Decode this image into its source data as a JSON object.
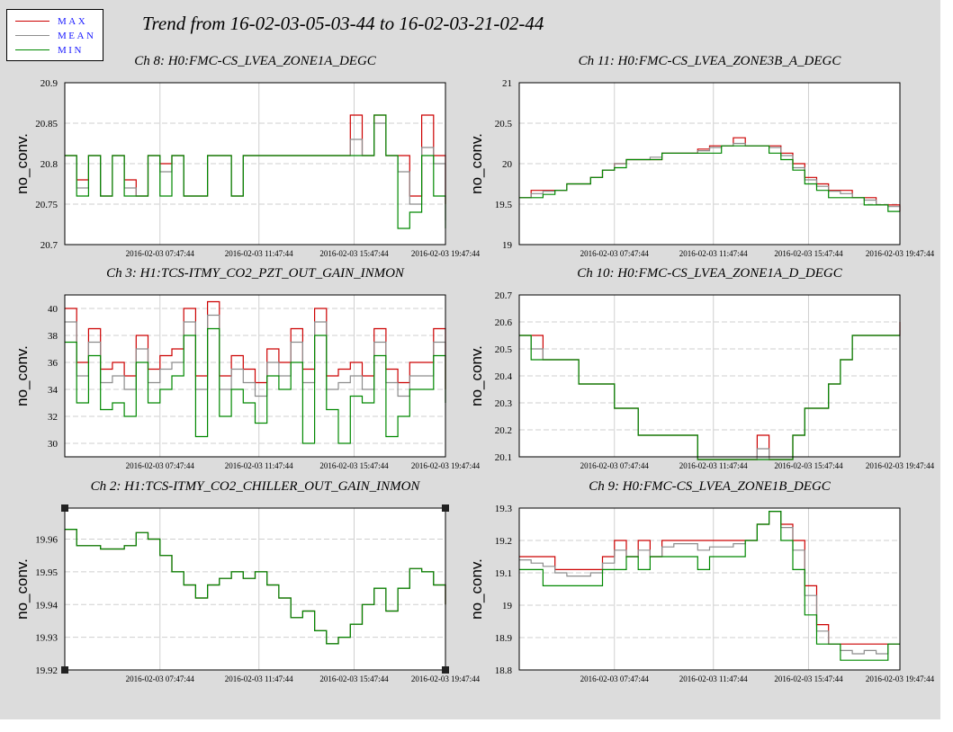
{
  "title": "Trend from 16-02-03-05-03-44 to 16-02-03-21-02-44",
  "legend": [
    {
      "label": "MAX",
      "color": "#cc0000"
    },
    {
      "label": "MEAN",
      "color": "#8c8c8c"
    },
    {
      "label": "MIN",
      "color": "#008800"
    }
  ],
  "chart_data": [
    {
      "type": "line",
      "title": "Ch 8: H0:FMC-CS_LVEA_ZONE1A_DEGC",
      "ylabel": "no_conv.",
      "ylim": [
        20.7,
        20.9
      ],
      "yticks": [
        "20.9",
        "20.85",
        "20.8",
        "20.75",
        "20.7"
      ],
      "xticks": [
        "2016-02-03 07:47:44",
        "2016-02-03 11:47:44",
        "2016-02-03 15:47:44",
        "2016-02-03 19:47:44"
      ],
      "x": [
        0,
        0.5,
        1,
        1.5,
        2,
        2.5,
        3,
        3.5,
        4,
        4.5,
        5,
        5.5,
        6,
        6.5,
        7,
        7.5,
        8,
        8.5,
        9,
        9.5,
        10,
        10.5,
        11,
        11.5,
        12,
        12.5,
        13,
        13.5,
        14,
        14.5,
        15,
        15.5,
        16
      ],
      "series": [
        {
          "name": "MAX",
          "values": [
            20.81,
            20.78,
            20.81,
            20.76,
            20.81,
            20.78,
            20.76,
            20.81,
            20.8,
            20.81,
            20.76,
            20.76,
            20.81,
            20.81,
            20.76,
            20.81,
            20.81,
            20.81,
            20.81,
            20.81,
            20.81,
            20.81,
            20.81,
            20.81,
            20.86,
            20.81,
            20.86,
            20.81,
            20.81,
            20.76,
            20.86,
            20.81,
            20.75
          ]
        },
        {
          "name": "MEAN",
          "values": [
            20.81,
            20.77,
            20.81,
            20.76,
            20.81,
            20.77,
            20.76,
            20.81,
            20.79,
            20.81,
            20.76,
            20.76,
            20.81,
            20.81,
            20.76,
            20.81,
            20.81,
            20.81,
            20.81,
            20.81,
            20.81,
            20.81,
            20.81,
            20.81,
            20.83,
            20.81,
            20.85,
            20.81,
            20.79,
            20.75,
            20.82,
            20.8,
            20.73
          ]
        },
        {
          "name": "MIN",
          "values": [
            20.81,
            20.76,
            20.81,
            20.76,
            20.81,
            20.76,
            20.76,
            20.81,
            20.76,
            20.81,
            20.76,
            20.76,
            20.81,
            20.81,
            20.76,
            20.81,
            20.81,
            20.81,
            20.81,
            20.81,
            20.81,
            20.81,
            20.81,
            20.81,
            20.81,
            20.81,
            20.86,
            20.81,
            20.72,
            20.74,
            20.81,
            20.76,
            20.72
          ]
        }
      ]
    },
    {
      "type": "line",
      "title": "Ch 11: H0:FMC-CS_LVEA_ZONE3B_A_DEGC",
      "ylabel": "no_conv.",
      "ylim": [
        19,
        21
      ],
      "yticks": [
        "21",
        "20.5",
        "20",
        "19.5",
        "19"
      ],
      "xticks": [
        "2016-02-03 07:47:44",
        "2016-02-03 11:47:44",
        "2016-02-03 15:47:44",
        "2016-02-03 19:47:44"
      ],
      "x": [
        0,
        0.5,
        1,
        1.5,
        2,
        2.5,
        3,
        3.5,
        4,
        4.5,
        5,
        5.5,
        6,
        6.5,
        7,
        7.5,
        8,
        8.5,
        9,
        9.5,
        10,
        10.5,
        11,
        11.5,
        12,
        12.5,
        13,
        13.5,
        14,
        14.5,
        15,
        15.5,
        16
      ],
      "series": [
        {
          "name": "MAX",
          "values": [
            19.58,
            19.67,
            19.67,
            19.67,
            19.75,
            19.75,
            19.83,
            19.92,
            20.0,
            20.05,
            20.05,
            20.05,
            20.13,
            20.13,
            20.13,
            20.18,
            20.22,
            20.22,
            20.32,
            20.22,
            20.22,
            20.22,
            20.13,
            20.0,
            19.83,
            19.75,
            19.67,
            19.67,
            19.58,
            19.58,
            19.49,
            19.49,
            19.41
          ]
        },
        {
          "name": "MEAN",
          "values": [
            19.58,
            19.63,
            19.66,
            19.67,
            19.75,
            19.75,
            19.83,
            19.92,
            20.0,
            20.05,
            20.05,
            20.08,
            20.13,
            20.13,
            20.13,
            20.16,
            20.2,
            20.22,
            20.25,
            20.22,
            20.22,
            20.2,
            20.1,
            19.95,
            19.8,
            19.72,
            19.66,
            19.63,
            19.58,
            19.55,
            19.49,
            19.47,
            19.41
          ]
        },
        {
          "name": "MIN",
          "values": [
            19.58,
            19.58,
            19.62,
            19.67,
            19.75,
            19.75,
            19.83,
            19.92,
            19.95,
            20.05,
            20.05,
            20.05,
            20.13,
            20.13,
            20.13,
            20.13,
            20.13,
            20.22,
            20.22,
            20.22,
            20.22,
            20.13,
            20.05,
            19.92,
            19.75,
            19.67,
            19.58,
            19.58,
            19.58,
            19.49,
            19.49,
            19.41,
            19.41
          ]
        }
      ]
    },
    {
      "type": "line",
      "title": "Ch 3: H1:TCS-ITMY_CO2_PZT_OUT_GAIN_INMON",
      "ylabel": "no_conv.",
      "ylim": [
        29,
        41
      ],
      "yticks": [
        "40",
        "38",
        "36",
        "34",
        "32",
        "30"
      ],
      "xticks": [
        "2016-02-03 07:47:44",
        "2016-02-03 11:47:44",
        "2016-02-03 15:47:44",
        "2016-02-03 19:47:44"
      ],
      "x": [
        0,
        0.5,
        1,
        1.5,
        2,
        2.5,
        3,
        3.5,
        4,
        4.5,
        5,
        5.5,
        6,
        6.5,
        7,
        7.5,
        8,
        8.5,
        9,
        9.5,
        10,
        10.5,
        11,
        11.5,
        12,
        12.5,
        13,
        13.5,
        14,
        14.5,
        15,
        15.5,
        16
      ],
      "series": [
        {
          "name": "MAX",
          "values": [
            40.0,
            36.0,
            38.5,
            35.5,
            36.0,
            35.0,
            38.0,
            35.5,
            36.5,
            37.0,
            40.0,
            35.0,
            40.5,
            35.0,
            36.5,
            35.5,
            34.5,
            37.0,
            36.0,
            38.5,
            35.5,
            40.0,
            35.0,
            35.5,
            36.0,
            35.0,
            38.5,
            35.5,
            34.5,
            36.0,
            36.0,
            38.5,
            34.0
          ]
        },
        {
          "name": "MEAN",
          "values": [
            39.0,
            35.0,
            37.5,
            34.5,
            35.0,
            34.0,
            37.0,
            34.5,
            35.5,
            36.0,
            39.0,
            34.0,
            39.5,
            34.0,
            35.5,
            34.5,
            33.5,
            36.0,
            35.0,
            37.5,
            34.5,
            39.0,
            34.0,
            34.5,
            35.0,
            34.0,
            37.5,
            34.5,
            33.5,
            35.0,
            35.0,
            37.5,
            33.0
          ]
        },
        {
          "name": "MIN",
          "values": [
            37.5,
            33.0,
            36.5,
            32.5,
            33.0,
            32.0,
            36.0,
            33.0,
            34.0,
            35.0,
            38.0,
            30.5,
            38.5,
            32.0,
            34.0,
            33.0,
            31.5,
            35.0,
            34.0,
            36.0,
            30.0,
            38.0,
            32.5,
            30.0,
            33.5,
            33.0,
            36.5,
            30.5,
            32.0,
            34.0,
            34.0,
            36.5,
            33.0
          ]
        }
      ]
    },
    {
      "type": "line",
      "title": "Ch 10: H0:FMC-CS_LVEA_ZONE1A_D_DEGC",
      "ylabel": "no_conv.",
      "ylim": [
        20.1,
        20.7
      ],
      "yticks": [
        "20.7",
        "20.6",
        "20.5",
        "20.4",
        "20.3",
        "20.2",
        "20.1"
      ],
      "xticks": [
        "2016-02-03 07:47:44",
        "2016-02-03 11:47:44",
        "2016-02-03 15:47:44",
        "2016-02-03 19:47:44"
      ],
      "x": [
        0,
        0.5,
        1,
        1.5,
        2,
        2.5,
        3,
        3.5,
        4,
        4.5,
        5,
        5.5,
        6,
        6.5,
        7,
        7.5,
        8,
        8.5,
        9,
        9.5,
        10,
        10.5,
        11,
        11.5,
        12,
        12.5,
        13,
        13.5,
        14,
        14.5,
        15,
        15.5,
        16
      ],
      "series": [
        {
          "name": "MAX",
          "values": [
            20.55,
            20.55,
            20.46,
            20.46,
            20.46,
            20.37,
            20.37,
            20.37,
            20.28,
            20.28,
            20.18,
            20.18,
            20.18,
            20.18,
            20.18,
            20.09,
            20.09,
            20.09,
            20.09,
            20.09,
            20.18,
            20.09,
            20.09,
            20.18,
            20.28,
            20.28,
            20.37,
            20.46,
            20.55,
            20.55,
            20.55,
            20.55,
            20.6
          ]
        },
        {
          "name": "MEAN",
          "values": [
            20.55,
            20.5,
            20.46,
            20.46,
            20.46,
            20.37,
            20.37,
            20.37,
            20.28,
            20.28,
            20.18,
            20.18,
            20.18,
            20.18,
            20.18,
            20.09,
            20.09,
            20.09,
            20.09,
            20.09,
            20.13,
            20.09,
            20.09,
            20.18,
            20.28,
            20.28,
            20.37,
            20.46,
            20.55,
            20.55,
            20.55,
            20.55,
            20.57
          ]
        },
        {
          "name": "MIN",
          "values": [
            20.55,
            20.46,
            20.46,
            20.46,
            20.46,
            20.37,
            20.37,
            20.37,
            20.28,
            20.28,
            20.18,
            20.18,
            20.18,
            20.18,
            20.18,
            20.09,
            20.09,
            20.09,
            20.09,
            20.09,
            20.09,
            20.09,
            20.09,
            20.18,
            20.28,
            20.28,
            20.37,
            20.46,
            20.55,
            20.55,
            20.55,
            20.55,
            20.55
          ]
        }
      ]
    },
    {
      "type": "line",
      "title": "Ch 2: H1:TCS-ITMY_CO2_CHILLER_OUT_GAIN_INMON",
      "ylabel": "no_conv.",
      "ylim": [
        19.92,
        19.9695
      ],
      "yticks": [
        "19.96",
        "19.95",
        "19.94",
        "19.93",
        "19.92"
      ],
      "xticks": [
        "2016-02-03 07:47:44",
        "2016-02-03 11:47:44",
        "2016-02-03 15:47:44",
        "2016-02-03 19:47:44"
      ],
      "x": [
        0,
        0.5,
        1,
        1.5,
        2,
        2.5,
        3,
        3.5,
        4,
        4.5,
        5,
        5.5,
        6,
        6.5,
        7,
        7.5,
        8,
        8.5,
        9,
        9.5,
        10,
        10.5,
        11,
        11.5,
        12,
        12.5,
        13,
        13.5,
        14,
        14.5,
        15,
        15.5,
        16
      ],
      "series": [
        {
          "name": "MAX",
          "values": [
            19.963,
            19.958,
            19.958,
            19.957,
            19.957,
            19.958,
            19.962,
            19.96,
            19.955,
            19.95,
            19.946,
            19.942,
            19.946,
            19.948,
            19.95,
            19.948,
            19.95,
            19.946,
            19.942,
            19.936,
            19.938,
            19.932,
            19.928,
            19.93,
            19.934,
            19.94,
            19.945,
            19.938,
            19.945,
            19.951,
            19.95,
            19.946,
            19.94
          ]
        },
        {
          "name": "MEAN",
          "values": [
            19.963,
            19.958,
            19.958,
            19.957,
            19.957,
            19.958,
            19.962,
            19.96,
            19.955,
            19.95,
            19.946,
            19.942,
            19.946,
            19.948,
            19.95,
            19.948,
            19.95,
            19.946,
            19.942,
            19.936,
            19.938,
            19.932,
            19.928,
            19.93,
            19.934,
            19.94,
            19.945,
            19.938,
            19.945,
            19.951,
            19.95,
            19.946,
            19.94
          ]
        },
        {
          "name": "MIN",
          "values": [
            19.963,
            19.958,
            19.958,
            19.957,
            19.957,
            19.958,
            19.962,
            19.96,
            19.955,
            19.95,
            19.946,
            19.942,
            19.946,
            19.948,
            19.95,
            19.948,
            19.95,
            19.946,
            19.942,
            19.936,
            19.938,
            19.932,
            19.928,
            19.93,
            19.934,
            19.94,
            19.945,
            19.938,
            19.945,
            19.951,
            19.95,
            19.946,
            19.94
          ]
        }
      ]
    },
    {
      "type": "line",
      "title": "Ch 9: H0:FMC-CS_LVEA_ZONE1B_DEGC",
      "ylabel": "no_conv.",
      "ylim": [
        18.8,
        19.3
      ],
      "yticks": [
        "19.3",
        "19.2",
        "19.1",
        "19",
        "18.9",
        "18.8"
      ],
      "xticks": [
        "2016-02-03 07:47:44",
        "2016-02-03 11:47:44",
        "2016-02-03 15:47:44",
        "2016-02-03 19:47:44"
      ],
      "x": [
        0,
        0.5,
        1,
        1.5,
        2,
        2.5,
        3,
        3.5,
        4,
        4.5,
        5,
        5.5,
        6,
        6.5,
        7,
        7.5,
        8,
        8.5,
        9,
        9.5,
        10,
        10.5,
        11,
        11.5,
        12,
        12.5,
        13,
        13.5,
        14,
        14.5,
        15,
        15.5,
        16
      ],
      "series": [
        {
          "name": "MAX",
          "values": [
            19.15,
            19.15,
            19.15,
            19.11,
            19.11,
            19.11,
            19.11,
            19.15,
            19.2,
            19.15,
            19.2,
            19.15,
            19.2,
            19.2,
            19.2,
            19.2,
            19.2,
            19.2,
            19.2,
            19.2,
            19.25,
            19.29,
            19.25,
            19.2,
            19.06,
            18.94,
            18.88,
            18.88,
            18.88,
            18.88,
            18.88,
            18.88,
            18.88
          ]
        },
        {
          "name": "MEAN",
          "values": [
            19.14,
            19.13,
            19.12,
            19.1,
            19.09,
            19.09,
            19.1,
            19.13,
            19.17,
            19.15,
            19.17,
            19.15,
            19.18,
            19.19,
            19.19,
            19.17,
            19.18,
            19.18,
            19.19,
            19.2,
            19.25,
            19.29,
            19.24,
            19.17,
            19.03,
            18.92,
            18.88,
            18.86,
            18.85,
            18.86,
            18.85,
            18.88,
            18.88
          ]
        },
        {
          "name": "MIN",
          "values": [
            19.11,
            19.11,
            19.06,
            19.06,
            19.06,
            19.06,
            19.06,
            19.11,
            19.11,
            19.15,
            19.11,
            19.15,
            19.15,
            19.15,
            19.15,
            19.11,
            19.15,
            19.15,
            19.15,
            19.2,
            19.25,
            19.29,
            19.2,
            19.11,
            18.97,
            18.88,
            18.88,
            18.83,
            18.83,
            18.83,
            18.83,
            18.88,
            18.88
          ]
        }
      ]
    }
  ]
}
